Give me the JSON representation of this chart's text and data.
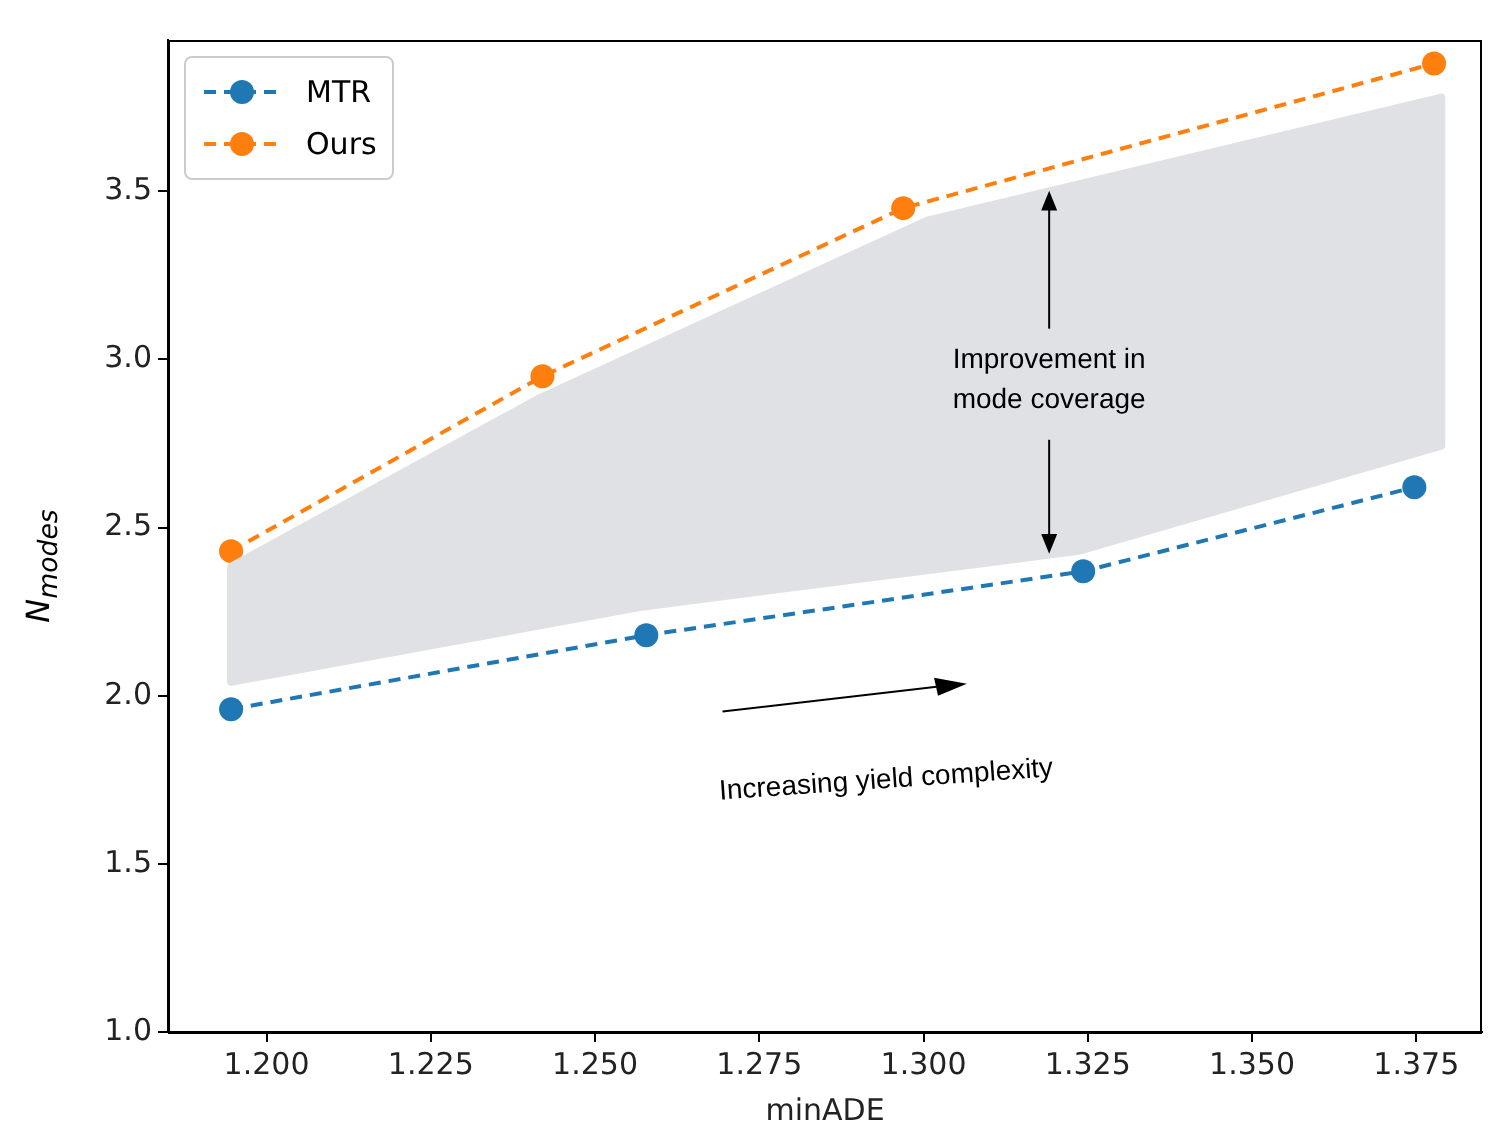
{
  "chart_data": {
    "type": "line",
    "xlabel": "minADE",
    "ylabel": "N$_{modes}$",
    "series": [
      {
        "name": "MTR",
        "color": "#1f77b4",
        "x": [
          1.1946,
          1.2578,
          1.3243,
          1.3747
        ],
        "values": [
          1.96,
          2.18,
          2.37,
          2.62
        ]
      },
      {
        "name": "Ours",
        "color": "#ff7f0e",
        "x": [
          1.1946,
          1.242,
          1.2969,
          1.3777
        ],
        "values": [
          2.43,
          2.95,
          3.45,
          3.88
        ]
      }
    ],
    "xlim": [
      1.185,
      1.385
    ],
    "ylim": [
      1.0,
      3.95
    ],
    "xticks": [
      {
        "value": 1.2,
        "label": "1.200"
      },
      {
        "value": 1.225,
        "label": "1.225"
      },
      {
        "value": 1.25,
        "label": "1.250"
      },
      {
        "value": 1.275,
        "label": "1.275"
      },
      {
        "value": 1.3,
        "label": "1.300"
      },
      {
        "value": 1.325,
        "label": "1.325"
      },
      {
        "value": 1.35,
        "label": "1.350"
      },
      {
        "value": 1.375,
        "label": "1.375"
      }
    ],
    "yticks": [
      {
        "value": 1,
        "label": "1.0"
      },
      {
        "value": 1.5,
        "label": "1.5"
      },
      {
        "value": 2,
        "label": "2.0"
      },
      {
        "value": 2.5,
        "label": "2.5"
      },
      {
        "value": 3,
        "label": "3.0"
      },
      {
        "value": 3.5,
        "label": "3.5"
      }
    ],
    "annotations": [
      "Improvement in mode coverage",
      "Increasing yield complexity"
    ],
    "legend": "top left",
    "marker": "circle",
    "line_style": "dashed",
    "grid": false
  }
}
